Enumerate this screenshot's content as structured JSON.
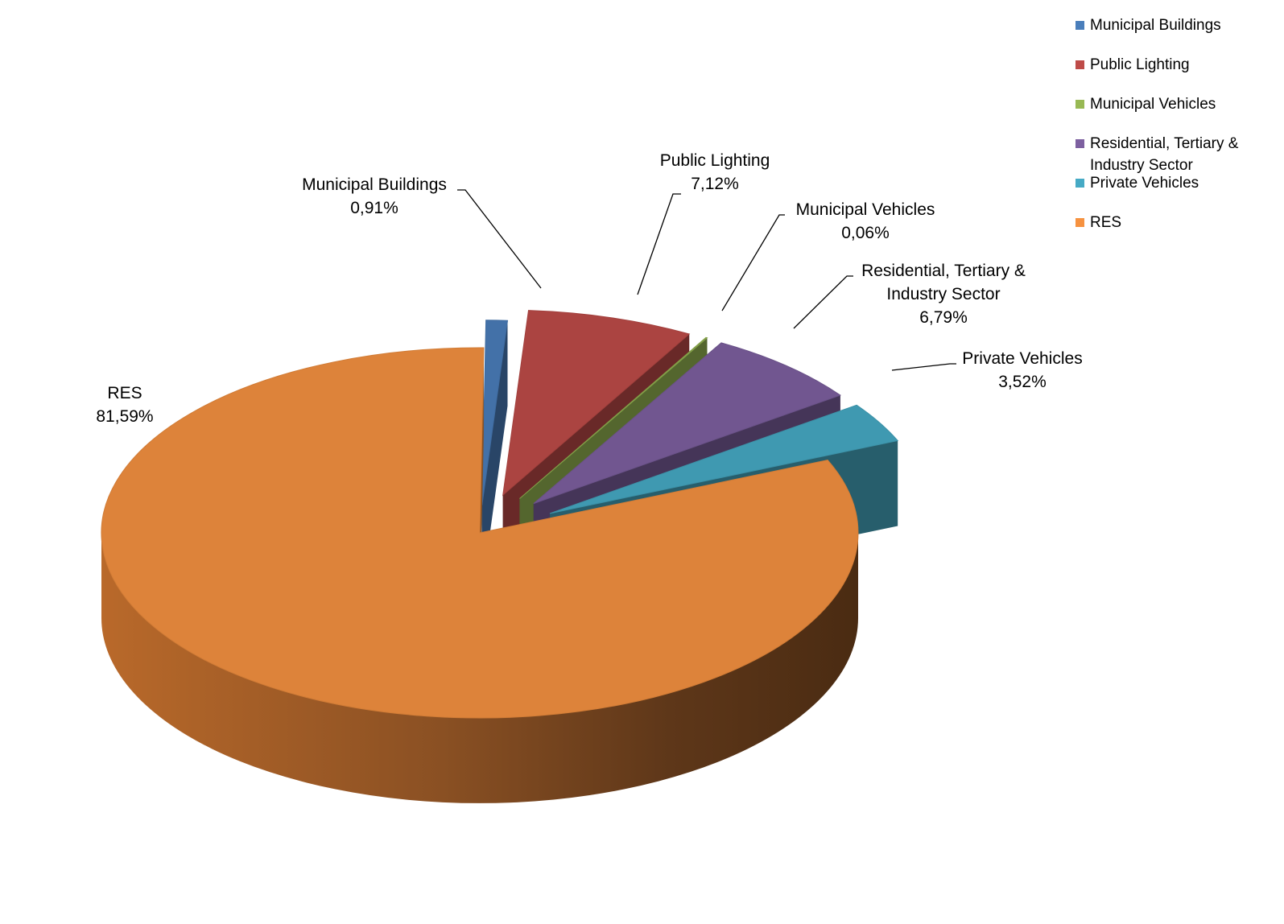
{
  "chart_data": {
    "type": "pie",
    "three_d": true,
    "exploded": true,
    "legend_position": "top-right",
    "categories": [
      "Municipal Buildings",
      "Public Lighting",
      "Municipal Vehicles",
      "Residential, Tertiary & Industry Sector",
      "Private Vehicles",
      "RES"
    ],
    "values": [
      0.91,
      7.12,
      0.06,
      6.79,
      3.52,
      81.59
    ],
    "data_labels": [
      "0,91%",
      "7,12%",
      "0,06%",
      "6,79%",
      "3,52%",
      "81,59%"
    ],
    "colors": [
      "#4a7ebb",
      "#be4b48",
      "#98b954",
      "#7d60a0",
      "#46aac5",
      "#f69240"
    ]
  }
}
